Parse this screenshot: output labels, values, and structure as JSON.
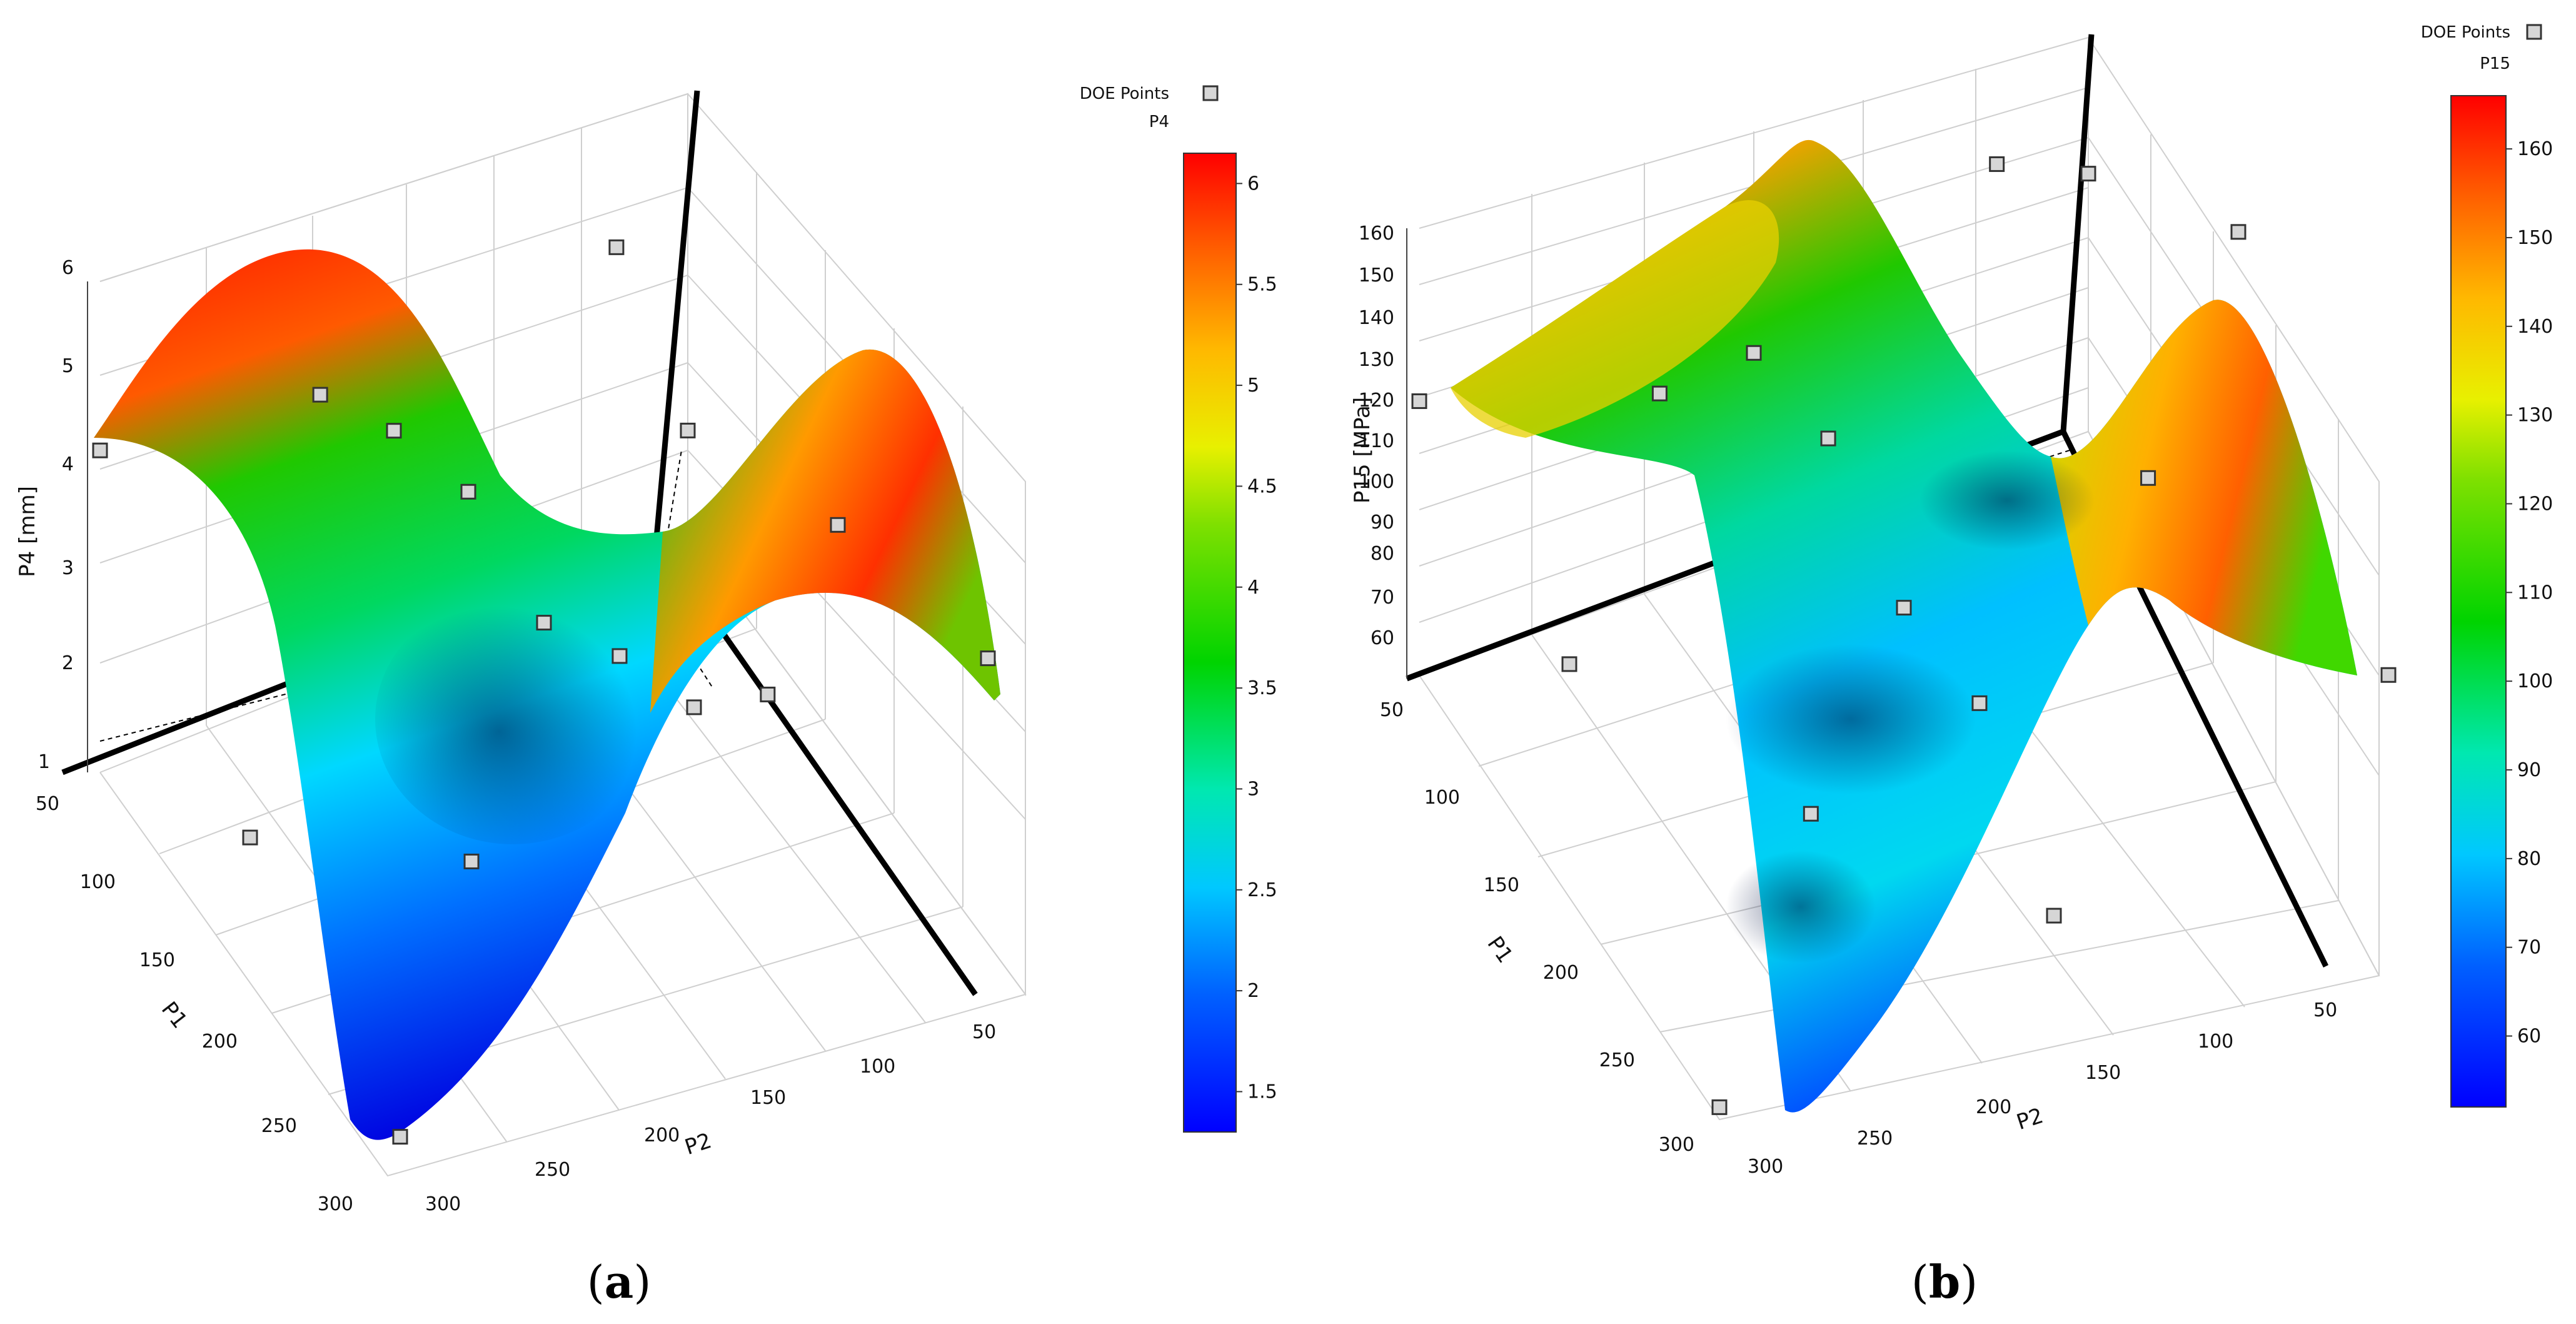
{
  "figure": {
    "panels": [
      {
        "caption_open": "(",
        "caption_letter": "a",
        "caption_close": ")",
        "legend_label": "DOE Points",
        "colorbar_title": "P4",
        "colorbar_ticks": [
          "6",
          "5.5",
          "5",
          "4.5",
          "4",
          "3.5",
          "3",
          "2.5",
          "2",
          "1.5"
        ],
        "z_axis_label": "P4  [mm]",
        "z_ticks": [
          "6",
          "5",
          "4",
          "3",
          "2",
          "1"
        ],
        "p1_label": "P1",
        "p1_ticks": [
          "50",
          "100",
          "150",
          "200",
          "250",
          "300"
        ],
        "p2_label": "P2",
        "p2_ticks": [
          "300",
          "250",
          "200",
          "150",
          "100",
          "50"
        ]
      },
      {
        "caption_open": "(",
        "caption_letter": "b",
        "caption_close": ")",
        "legend_label": "DOE Points",
        "colorbar_title": "P15",
        "colorbar_ticks": [
          "160",
          "150",
          "140",
          "130",
          "120",
          "110",
          "100",
          "90",
          "80",
          "70",
          "60"
        ],
        "z_axis_label": "P15  [MPa]",
        "z_ticks": [
          "160",
          "150",
          "140",
          "130",
          "120",
          "110",
          "100",
          "90",
          "80",
          "70",
          "60"
        ],
        "p1_label": "P1",
        "p1_ticks": [
          "50",
          "100",
          "150",
          "200",
          "250",
          "300"
        ],
        "p2_label": "P2",
        "p2_ticks": [
          "300",
          "250",
          "200",
          "150",
          "100",
          "50"
        ]
      }
    ]
  },
  "chart_data": [
    {
      "type": "surface3d",
      "title": "",
      "xlabel": "P1",
      "ylabel": "P2",
      "zlabel": "P4  [mm]",
      "x_range": [
        50,
        300
      ],
      "y_range": [
        50,
        300
      ],
      "z_range": [
        1,
        6
      ],
      "colorbar_range": [
        1.3,
        6.15
      ],
      "colormap": [
        "#0000ff",
        "#00c8ff",
        "#00e6a0",
        "#00d400",
        "#c8f000",
        "#ffd000",
        "#ff7a00",
        "#ff0000"
      ],
      "legend": "DOE Points",
      "doe_points": [
        {
          "P1": 50,
          "P2": 50,
          "P4": 2.1
        },
        {
          "P1": 50,
          "P2": 175,
          "P4": 3.3
        },
        {
          "P1": 50,
          "P2": 300,
          "P4": 4.3
        },
        {
          "P1": 112,
          "P2": 112,
          "P4": 5.6
        },
        {
          "P1": 112,
          "P2": 238,
          "P4": 5.3
        },
        {
          "P1": 175,
          "P2": 50,
          "P4": 3.2
        },
        {
          "P1": 175,
          "P2": 175,
          "P4": 3.4
        },
        {
          "P1": 175,
          "P2": 300,
          "P4": 2.4
        },
        {
          "P1": 238,
          "P2": 112,
          "P4": 3.1
        },
        {
          "P1": 238,
          "P2": 238,
          "P4": 2.6
        },
        {
          "P1": 300,
          "P2": 50,
          "P4": 3.9
        },
        {
          "P1": 300,
          "P2": 175,
          "P4": 4.6
        },
        {
          "P1": 300,
          "P2": 300,
          "P4": 1.4
        },
        {
          "P1": 112,
          "P2": 175,
          "P4": 3.7
        },
        {
          "P1": 238,
          "P2": 175,
          "P4": 4.1
        }
      ]
    },
    {
      "type": "surface3d",
      "title": "",
      "xlabel": "P1",
      "ylabel": "P2",
      "zlabel": "P15  [MPa]",
      "x_range": [
        50,
        300
      ],
      "y_range": [
        50,
        300
      ],
      "z_range": [
        55,
        165
      ],
      "colorbar_range": [
        52,
        166
      ],
      "colormap": [
        "#0000ff",
        "#00c8ff",
        "#00e6a0",
        "#00d400",
        "#c8f000",
        "#ffd000",
        "#ff7a00",
        "#ff0000"
      ],
      "legend": "DOE Points",
      "doe_points": [
        {
          "P1": 50,
          "P2": 50,
          "P15": 118
        },
        {
          "P1": 50,
          "P2": 175,
          "P15": 104
        },
        {
          "P1": 50,
          "P2": 300,
          "P15": 122
        },
        {
          "P1": 112,
          "P2": 112,
          "P15": 162
        },
        {
          "P1": 112,
          "P2": 238,
          "P15": 136
        },
        {
          "P1": 175,
          "P2": 50,
          "P15": 158
        },
        {
          "P1": 175,
          "P2": 175,
          "P15": 96
        },
        {
          "P1": 175,
          "P2": 300,
          "P15": 112
        },
        {
          "P1": 238,
          "P2": 112,
          "P15": 140
        },
        {
          "P1": 238,
          "P2": 238,
          "P15": 88
        },
        {
          "P1": 300,
          "P2": 50,
          "P15": 104
        },
        {
          "P1": 300,
          "P2": 175,
          "P15": 75
        },
        {
          "P1": 300,
          "P2": 300,
          "P15": 58
        },
        {
          "P1": 112,
          "P2": 175,
          "P15": 110
        },
        {
          "P1": 238,
          "P2": 175,
          "P15": 100
        }
      ]
    }
  ]
}
